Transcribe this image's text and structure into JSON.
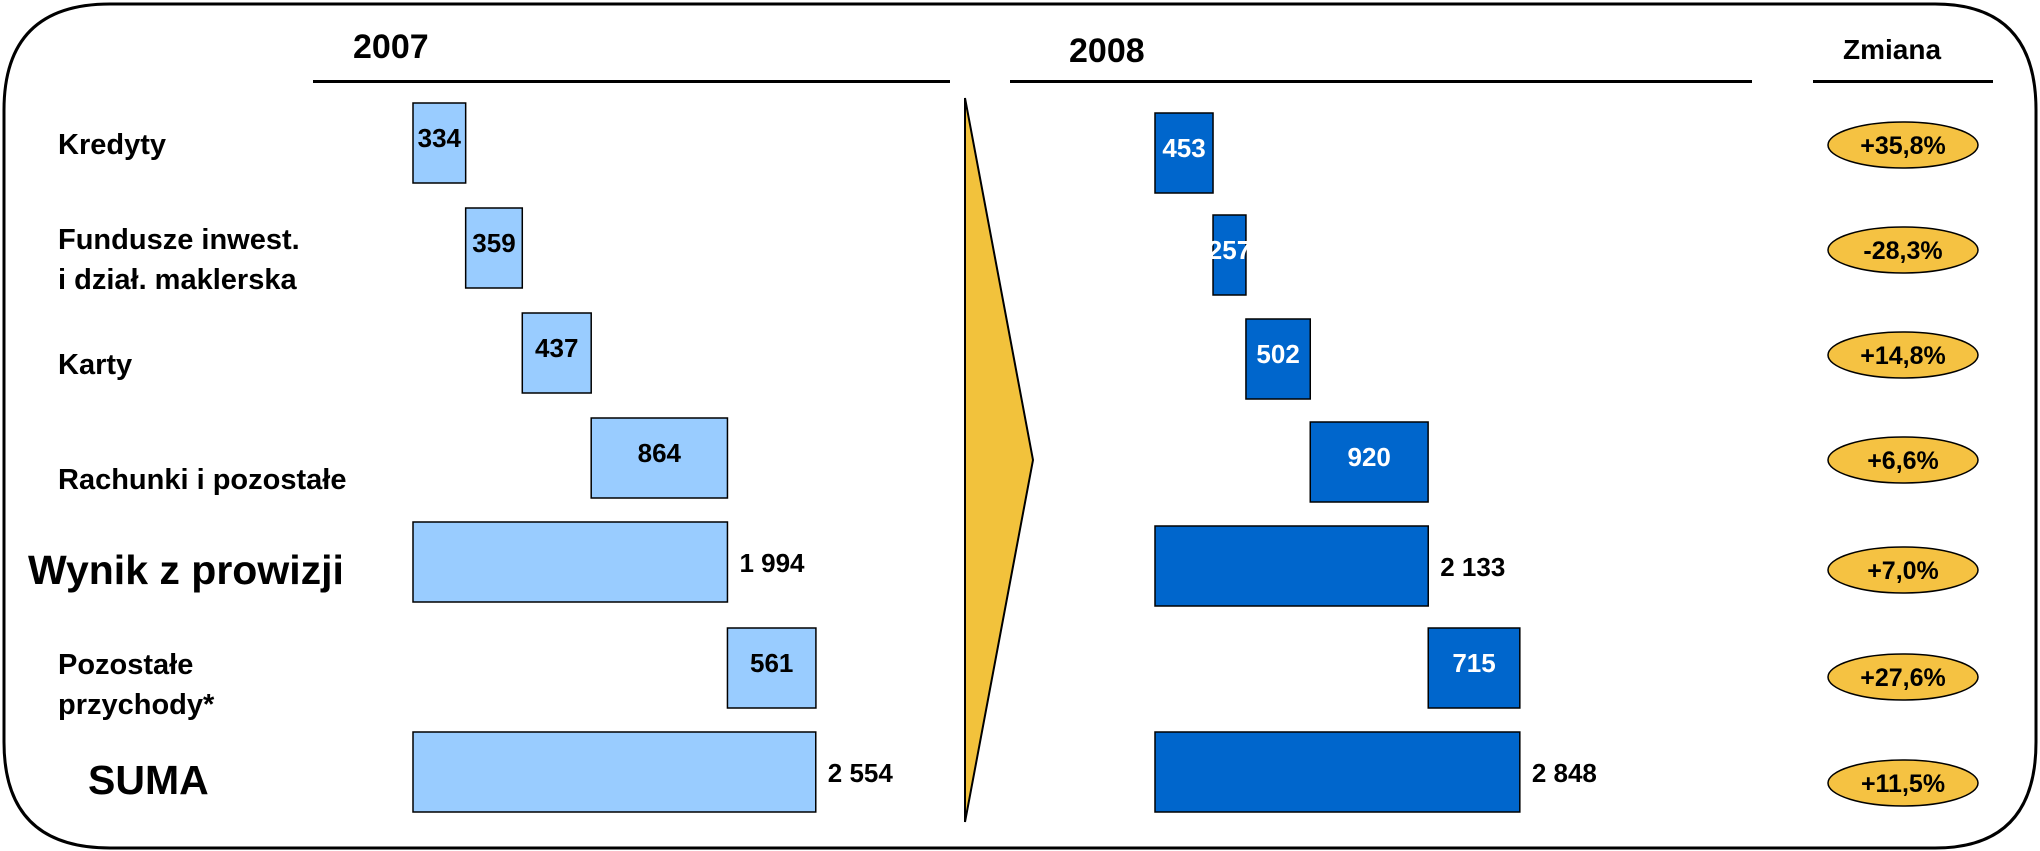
{
  "headers": {
    "year1": "2007",
    "year2": "2008",
    "change": "Zmiana"
  },
  "colors": {
    "bar2007": "#99ccff",
    "bar2008": "#0066cc",
    "arrow": "#f2c23c",
    "badge": "#f5c242"
  },
  "rows": [
    {
      "label": "Kredyty",
      "big": false
    },
    {
      "label": "Fundusze inwest.\ni dział. maklerska",
      "big": false
    },
    {
      "label": "Karty",
      "big": false
    },
    {
      "label": "Rachunki i pozostałe",
      "big": false
    },
    {
      "label": "Wynik z prowizji",
      "big": true
    },
    {
      "label": "Pozostałe\nprzychody*",
      "big": false
    },
    {
      "label": "SUMA",
      "big": true
    }
  ],
  "chart_data": {
    "type": "bar",
    "subtype": "waterfall",
    "categories": [
      "Kredyty",
      "Fundusze inwest. i dział. maklerska",
      "Karty",
      "Rachunki i pozostałe",
      "Wynik z prowizji",
      "Pozostałe przychody*",
      "SUMA"
    ],
    "kinds": [
      "delta",
      "delta",
      "delta",
      "delta",
      "total",
      "delta",
      "total"
    ],
    "series": [
      {
        "name": "2007",
        "values": [
          334,
          359,
          437,
          864,
          1994,
          561,
          2554
        ],
        "labels": [
          "334",
          "359",
          "437",
          "864",
          "1 994",
          "561",
          "2 554"
        ]
      },
      {
        "name": "2008",
        "values": [
          453,
          257,
          502,
          920,
          2133,
          715,
          2848
        ],
        "labels": [
          "453",
          "257",
          "502",
          "920",
          "2 133",
          "715",
          "2 848"
        ]
      }
    ],
    "change": [
      "+35,8%",
      "-28,3%",
      "+14,8%",
      "+6,6%",
      "+7,0%",
      "+27,6%",
      "+11,5%"
    ]
  }
}
